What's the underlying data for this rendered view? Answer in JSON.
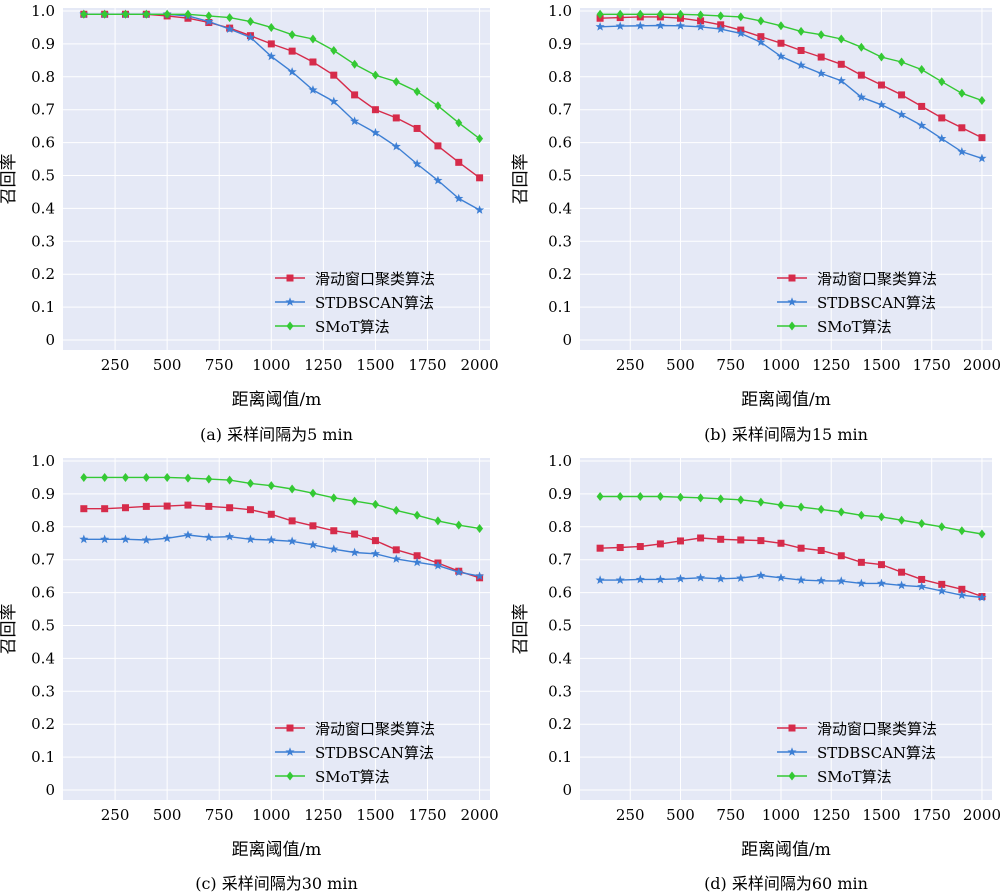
{
  "chart_data": [
    {
      "type": "line",
      "caption": "(a) 采样间隔为5 min",
      "xlabel": "距离阈值/m",
      "ylabel": "召回率",
      "xlim": [
        0,
        2050
      ],
      "ylim": [
        0,
        1.0
      ],
      "x_ticks": [
        250,
        500,
        750,
        1000,
        1250,
        1500,
        1750,
        2000
      ],
      "y_ticks": [
        0,
        0.1,
        0.2,
        0.3,
        0.4,
        0.5,
        0.6,
        0.7,
        0.8,
        0.9,
        1.0
      ],
      "grid": true,
      "legend_position": "lower-right",
      "x": [
        100,
        200,
        300,
        400,
        500,
        600,
        700,
        800,
        900,
        1000,
        1100,
        1200,
        1300,
        1400,
        1500,
        1600,
        1700,
        1800,
        1900,
        2000
      ],
      "series": [
        {
          "name": "滑动窗口聚类算法",
          "color": "#d62b4a",
          "marker": "square",
          "values": [
            0.99,
            0.99,
            0.99,
            0.99,
            0.985,
            0.978,
            0.965,
            0.948,
            0.925,
            0.9,
            0.878,
            0.845,
            0.805,
            0.745,
            0.7,
            0.675,
            0.643,
            0.59,
            0.54,
            0.493
          ]
        },
        {
          "name": "STDBSCAN算法",
          "color": "#3d7fd4",
          "marker": "star",
          "values": [
            0.99,
            0.99,
            0.99,
            0.99,
            0.99,
            0.985,
            0.968,
            0.945,
            0.92,
            0.862,
            0.815,
            0.76,
            0.725,
            0.665,
            0.63,
            0.588,
            0.535,
            0.485,
            0.43,
            0.395
          ]
        },
        {
          "name": "SMoT算法",
          "color": "#34c934",
          "marker": "diamond",
          "values": [
            0.99,
            0.99,
            0.99,
            0.99,
            0.99,
            0.99,
            0.985,
            0.98,
            0.968,
            0.95,
            0.928,
            0.915,
            0.88,
            0.838,
            0.805,
            0.785,
            0.755,
            0.712,
            0.66,
            0.612
          ]
        }
      ]
    },
    {
      "type": "line",
      "caption": "(b) 采样间隔为15 min",
      "xlabel": "距离阈值/m",
      "ylabel": "召回率",
      "xlim": [
        0,
        2050
      ],
      "ylim": [
        0,
        1.0
      ],
      "x_ticks": [
        250,
        500,
        750,
        1000,
        1250,
        1500,
        1750,
        2000
      ],
      "y_ticks": [
        0,
        0.1,
        0.2,
        0.3,
        0.4,
        0.5,
        0.6,
        0.7,
        0.8,
        0.9,
        1.0
      ],
      "grid": true,
      "legend_position": "lower-right",
      "x": [
        100,
        200,
        300,
        400,
        500,
        600,
        700,
        800,
        900,
        1000,
        1100,
        1200,
        1300,
        1400,
        1500,
        1600,
        1700,
        1800,
        1900,
        2000
      ],
      "series": [
        {
          "name": "滑动窗口聚类算法",
          "color": "#d62b4a",
          "marker": "square",
          "values": [
            0.978,
            0.98,
            0.982,
            0.982,
            0.978,
            0.97,
            0.958,
            0.942,
            0.922,
            0.902,
            0.88,
            0.86,
            0.838,
            0.805,
            0.775,
            0.745,
            0.71,
            0.675,
            0.645,
            0.615
          ]
        },
        {
          "name": "STDBSCAN算法",
          "color": "#3d7fd4",
          "marker": "star",
          "values": [
            0.952,
            0.954,
            0.955,
            0.956,
            0.955,
            0.952,
            0.945,
            0.932,
            0.905,
            0.862,
            0.835,
            0.81,
            0.788,
            0.738,
            0.715,
            0.685,
            0.652,
            0.612,
            0.572,
            0.552
          ]
        },
        {
          "name": "SMoT算法",
          "color": "#34c934",
          "marker": "diamond",
          "values": [
            0.99,
            0.99,
            0.99,
            0.99,
            0.99,
            0.988,
            0.985,
            0.982,
            0.97,
            0.955,
            0.938,
            0.928,
            0.915,
            0.89,
            0.86,
            0.845,
            0.822,
            0.785,
            0.75,
            0.728
          ]
        }
      ]
    },
    {
      "type": "line",
      "caption": "(c) 采样间隔为30 min",
      "xlabel": "距离阈值/m",
      "ylabel": "召回率",
      "xlim": [
        0,
        2050
      ],
      "ylim": [
        0,
        1.0
      ],
      "x_ticks": [
        250,
        500,
        750,
        1000,
        1250,
        1500,
        1750,
        2000
      ],
      "y_ticks": [
        0,
        0.1,
        0.2,
        0.3,
        0.4,
        0.5,
        0.6,
        0.7,
        0.8,
        0.9,
        1.0
      ],
      "grid": true,
      "legend_position": "lower-right",
      "x": [
        100,
        200,
        300,
        400,
        500,
        600,
        700,
        800,
        900,
        1000,
        1100,
        1200,
        1300,
        1400,
        1500,
        1600,
        1700,
        1800,
        1900,
        2000
      ],
      "series": [
        {
          "name": "滑动窗口聚类算法",
          "color": "#d62b4a",
          "marker": "square",
          "values": [
            0.855,
            0.855,
            0.858,
            0.862,
            0.863,
            0.866,
            0.862,
            0.858,
            0.852,
            0.838,
            0.818,
            0.803,
            0.788,
            0.778,
            0.758,
            0.73,
            0.712,
            0.69,
            0.665,
            0.645
          ]
        },
        {
          "name": "STDBSCAN算法",
          "color": "#3d7fd4",
          "marker": "star",
          "values": [
            0.762,
            0.762,
            0.762,
            0.76,
            0.765,
            0.775,
            0.768,
            0.77,
            0.762,
            0.76,
            0.756,
            0.745,
            0.732,
            0.722,
            0.718,
            0.702,
            0.692,
            0.682,
            0.662,
            0.65
          ]
        },
        {
          "name": "SMoT算法",
          "color": "#34c934",
          "marker": "diamond",
          "values": [
            0.95,
            0.95,
            0.95,
            0.95,
            0.95,
            0.948,
            0.945,
            0.942,
            0.932,
            0.925,
            0.915,
            0.902,
            0.888,
            0.878,
            0.868,
            0.85,
            0.835,
            0.818,
            0.805,
            0.795
          ]
        }
      ]
    },
    {
      "type": "line",
      "caption": "(d) 采样间隔为60 min",
      "xlabel": "距离阈值/m",
      "ylabel": "召回率",
      "xlim": [
        0,
        2050
      ],
      "ylim": [
        0,
        1.0
      ],
      "x_ticks": [
        250,
        500,
        750,
        1000,
        1250,
        1500,
        1750,
        2000
      ],
      "y_ticks": [
        0,
        0.1,
        0.2,
        0.3,
        0.4,
        0.5,
        0.6,
        0.7,
        0.8,
        0.9,
        1.0
      ],
      "grid": true,
      "legend_position": "lower-right",
      "x": [
        100,
        200,
        300,
        400,
        500,
        600,
        700,
        800,
        900,
        1000,
        1100,
        1200,
        1300,
        1400,
        1500,
        1600,
        1700,
        1800,
        1900,
        2000
      ],
      "series": [
        {
          "name": "滑动窗口聚类算法",
          "color": "#d62b4a",
          "marker": "square",
          "values": [
            0.735,
            0.737,
            0.74,
            0.748,
            0.757,
            0.766,
            0.762,
            0.76,
            0.758,
            0.75,
            0.735,
            0.728,
            0.712,
            0.692,
            0.685,
            0.662,
            0.64,
            0.625,
            0.61,
            0.588
          ]
        },
        {
          "name": "STDBSCAN算法",
          "color": "#3d7fd4",
          "marker": "star",
          "values": [
            0.638,
            0.638,
            0.64,
            0.64,
            0.642,
            0.645,
            0.642,
            0.644,
            0.652,
            0.645,
            0.638,
            0.636,
            0.635,
            0.628,
            0.628,
            0.622,
            0.618,
            0.605,
            0.592,
            0.585
          ]
        },
        {
          "name": "SMoT算法",
          "color": "#34c934",
          "marker": "diamond",
          "values": [
            0.892,
            0.892,
            0.892,
            0.892,
            0.89,
            0.888,
            0.885,
            0.882,
            0.875,
            0.866,
            0.86,
            0.853,
            0.845,
            0.835,
            0.83,
            0.82,
            0.81,
            0.8,
            0.788,
            0.778
          ]
        }
      ]
    }
  ]
}
